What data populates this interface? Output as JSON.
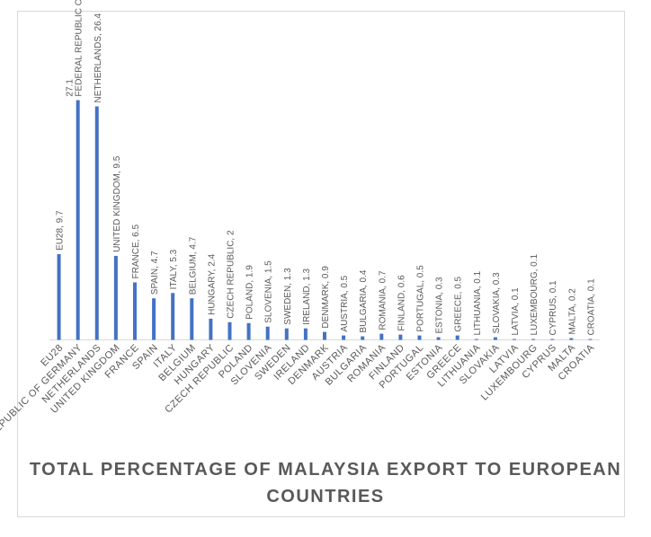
{
  "chart_data": {
    "type": "bar",
    "title": "TOTAL PERCENTAGE OF MALAYSIA EXPORT TO EUROPEAN COUNTRIES",
    "xlabel": "",
    "ylabel": "",
    "ylim": [
      0,
      30
    ],
    "grid": false,
    "legend": "none",
    "bar_color": "#4472c4",
    "axis_color": "#d9d9d9",
    "label_color": "#595959",
    "categories": [
      "EU28",
      "FEDERAL REPUBLIC OF GERMANY",
      "NETHERLANDS",
      "UNITED KINGDOM",
      "FRANCE",
      "SPAIN",
      "ITALY",
      "BELGIUM",
      "HUNGARY",
      "CZECH REPUBLIC",
      "POLAND",
      "SLOVENIA",
      "SWEDEN",
      "IRELAND",
      "DENMARK",
      "AUSTRIA",
      "BULGARIA",
      "ROMANIA",
      "FINLAND",
      "PORTUGAL",
      "ESTONIA",
      "GREECE",
      "LITHUANIA",
      "SLOVAKIA",
      "LATVIA",
      "LUXEMBOURG",
      "CYPRUS",
      "MALTA",
      "CROATIA"
    ],
    "values": [
      9.7,
      27.1,
      26.4,
      9.5,
      6.5,
      4.7,
      5.3,
      4.7,
      2.4,
      2,
      1.9,
      1.5,
      1.3,
      1.3,
      0.9,
      0.5,
      0.4,
      0.7,
      0.6,
      0.5,
      0.3,
      0.5,
      0.1,
      0.3,
      0.1,
      0.1,
      0.1,
      0.2,
      0.1
    ],
    "data_labels": [
      "EU28, 9.7",
      "FEDERAL REPUBLIC OF GERMANY",
      "NETHERLANDS, 26.4",
      "UNITED KINGDOM, 9.5",
      "FRANCE, 6.5",
      "SPAIN, 4.7",
      "ITALY, 5.3",
      "BELGIUM, 4.7",
      "HUNGARY, 2.4",
      "CZECH REPUBLIC, 2",
      "POLAND, 1.9",
      "SLOVENIA, 1.5",
      "SWEDEN, 1.3",
      "IRELAND, 1.3",
      "DENMARK, 0.9",
      "AUSTRIA, 0.5",
      "BULGARIA, 0.4",
      "ROMANIA, 0.7",
      "FINLAND, 0.6",
      "PORTUGAL, 0.5",
      "ESTONIA, 0.3",
      "GREECE, 0.5",
      "LITHUANIA, 0.1",
      "SLOVAKIA, 0.3",
      "LATVIA, 0.1",
      "LUXEMBOURG, 0.1",
      "CYPRUS, 0.1",
      "MALTA, 0.2",
      "CROATIA, 0.1"
    ],
    "extra_labels": [
      {
        "category": "FEDERAL REPUBLIC OF GERMANY",
        "text": "27.1"
      }
    ]
  }
}
